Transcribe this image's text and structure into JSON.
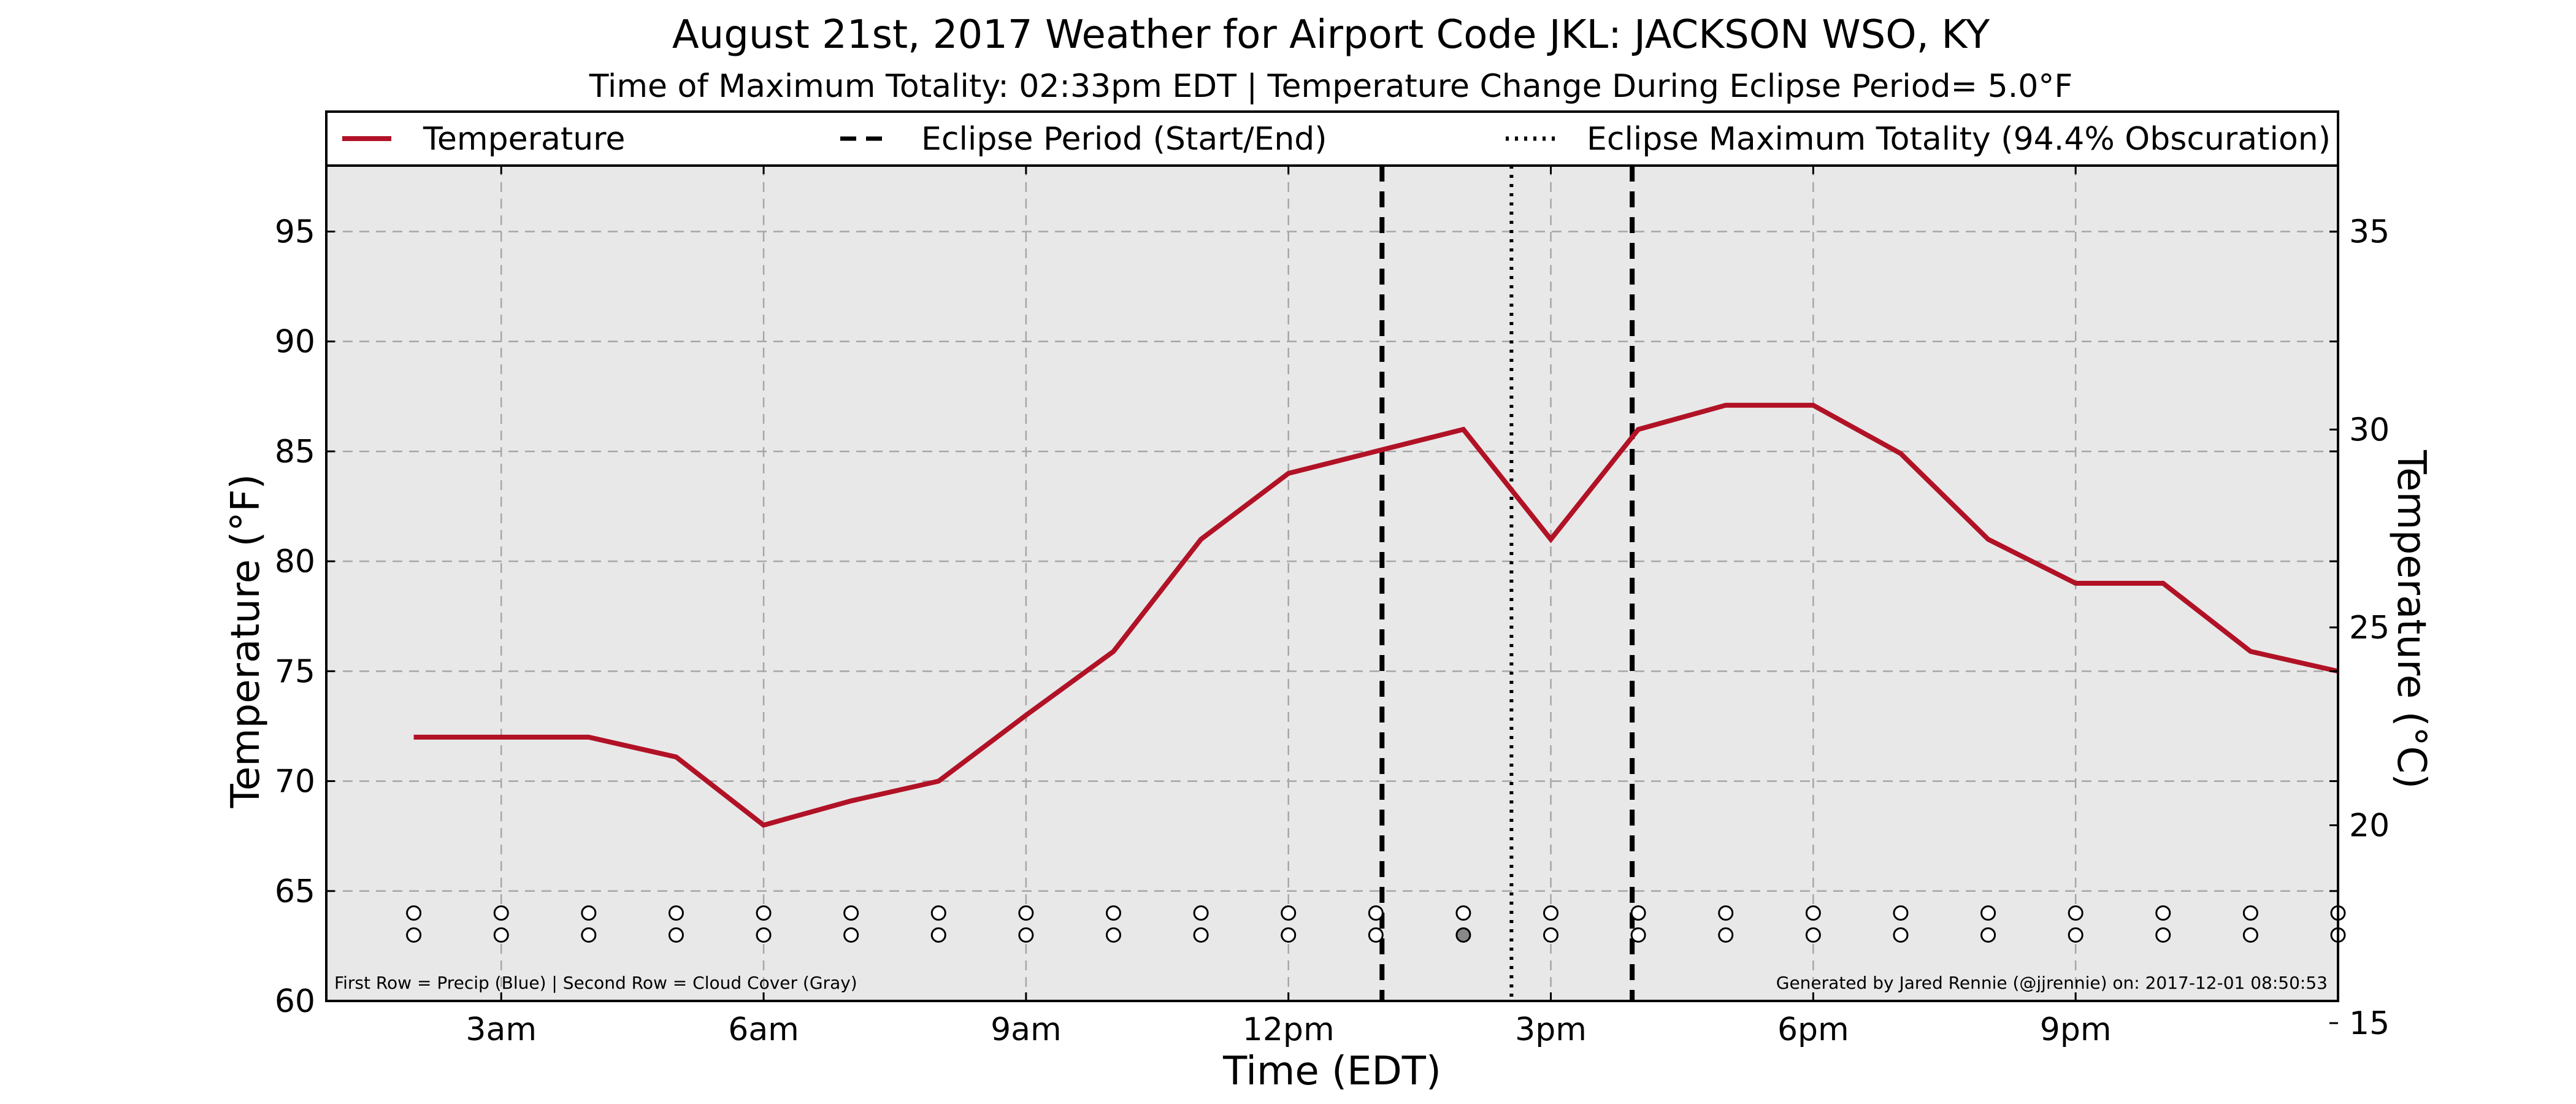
{
  "chart_data": {
    "type": "line",
    "title": "August 21st, 2017 Weather for Airport Code JKL: JACKSON WSO, KY",
    "subtitle": "Time of Maximum Totality: 02:33pm EDT | Temperature Change During Eclipse Period= 5.0°F",
    "xlabel": "Time (EDT)",
    "ylabel": "Temperature (°F)",
    "ylabel_right": "Temperature (°C)",
    "xlim": [
      1.0,
      24.0
    ],
    "ylim": [
      60,
      98
    ],
    "ylim_right_c": [
      15.56,
      36.67
    ],
    "x_ticks": [
      {
        "x": 3,
        "label": "3am"
      },
      {
        "x": 6,
        "label": "6am"
      },
      {
        "x": 9,
        "label": "9am"
      },
      {
        "x": 12,
        "label": "12pm"
      },
      {
        "x": 15,
        "label": "3pm"
      },
      {
        "x": 18,
        "label": "6pm"
      },
      {
        "x": 21,
        "label": "9pm"
      }
    ],
    "y_ticks": [
      60,
      65,
      70,
      75,
      80,
      85,
      90,
      95
    ],
    "y_ticks_right": [
      15,
      20,
      25,
      30,
      35
    ],
    "grid": true,
    "legend_position": "top",
    "legend": [
      {
        "label": "Temperature",
        "style": "solid"
      },
      {
        "label": "Eclipse Period (Start/End)",
        "style": "dashed"
      },
      {
        "label": "Eclipse Maximum Totality (94.4% Obscuration)",
        "style": "dotted"
      }
    ],
    "series": [
      {
        "name": "Temperature",
        "color": "#b11226",
        "x": [
          2.0,
          3.0,
          4.0,
          5.0,
          6.0,
          7.0,
          8.0,
          9.0,
          10.0,
          11.0,
          12.0,
          13.0,
          14.0,
          15.0,
          16.0,
          17.0,
          18.0,
          19.0,
          20.0,
          21.0,
          22.0,
          23.0,
          24.0
        ],
        "y": [
          72,
          72,
          72,
          71.1,
          68,
          69.1,
          70,
          73,
          75.9,
          81,
          84,
          85,
          86,
          81,
          86,
          87.1,
          87.1,
          84.9,
          81,
          79,
          79,
          75.9,
          75
        ]
      }
    ],
    "eclipse_start_x": 13.07,
    "eclipse_end_x": 15.93,
    "eclipse_max_x": 14.55,
    "marker_rows": {
      "row1_y": 64,
      "row2_y": 63,
      "x": [
        2.0,
        3.0,
        4.0,
        5.0,
        6.0,
        7.0,
        8.0,
        9.0,
        10.0,
        11.0,
        12.0,
        13.0,
        14.0,
        15.0,
        16.0,
        17.0,
        18.0,
        19.0,
        20.0,
        21.0,
        22.0,
        23.0,
        24.0
      ],
      "row1_filled": [
        false,
        false,
        false,
        false,
        false,
        false,
        false,
        false,
        false,
        false,
        false,
        false,
        false,
        false,
        false,
        false,
        false,
        false,
        false,
        false,
        false,
        false,
        false
      ],
      "row2_filled": [
        false,
        false,
        false,
        false,
        false,
        false,
        false,
        false,
        false,
        false,
        false,
        false,
        true,
        false,
        false,
        false,
        false,
        false,
        false,
        false,
        false,
        false,
        false
      ],
      "fill_color": "#888888"
    },
    "footnote_left": "First Row = Precip (Blue) | Second Row = Cloud Cover (Gray)",
    "footnote_right": "Generated by Jared Rennie (@jjrennie) on: 2017-12-01 08:50:53",
    "colors": {
      "background": "#e8e8e8",
      "grid": "#a6a6a6"
    }
  }
}
